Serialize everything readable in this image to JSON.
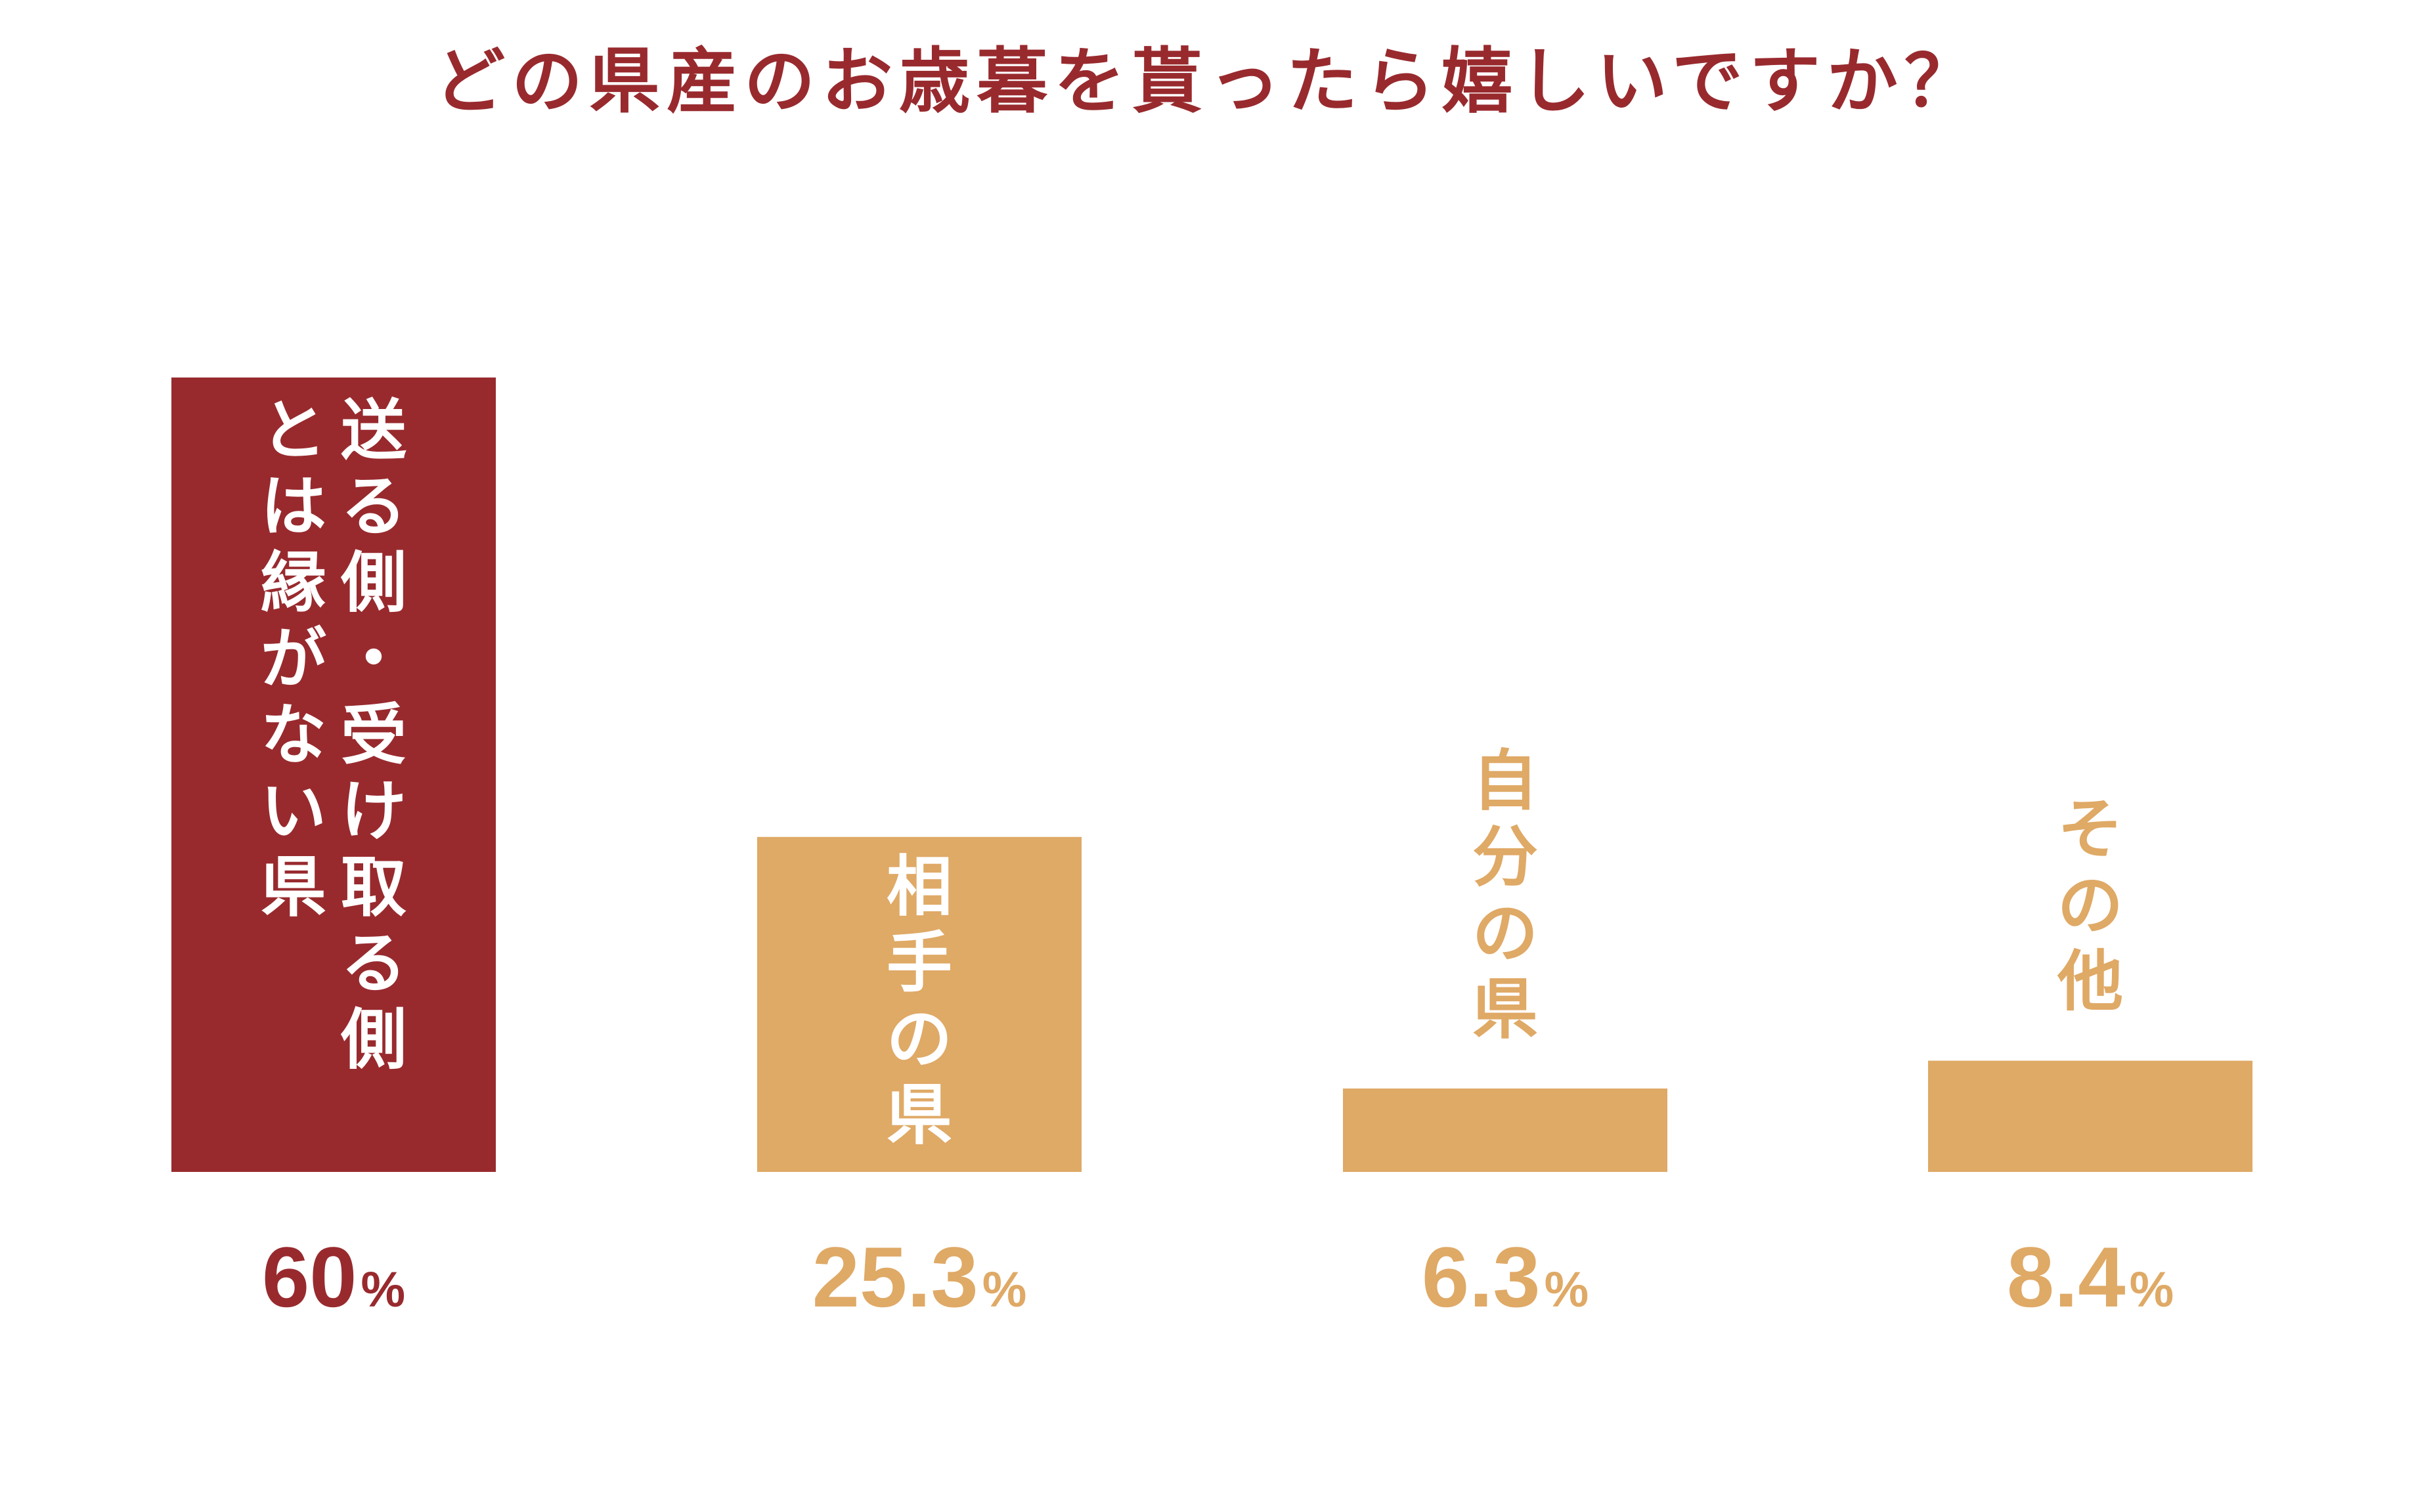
{
  "chart_data": {
    "type": "bar",
    "title": "どの県産のお歳暮を貰ったら嬉しいですか？",
    "categories": [
      "送る側・受け取る側とは縁がない県",
      "相手の県",
      "自分の県",
      "その他"
    ],
    "category_lines": [
      [
        "送る側・受け取る側",
        "とは縁がない県"
      ],
      [
        "相手の県"
      ],
      [
        "自分の県"
      ],
      [
        "その他"
      ]
    ],
    "values": [
      60,
      25.3,
      6.3,
      8.4
    ],
    "value_labels": [
      "60",
      "25.3",
      "6.3",
      "8.4"
    ],
    "unit": "%",
    "ylim": [
      0,
      60
    ],
    "grid": false,
    "legend": "none",
    "bar_colors": [
      "#982a2e",
      "#dfa966",
      "#dfa966",
      "#dfa966"
    ],
    "label_positions": [
      "inside",
      "inside",
      "above",
      "above"
    ]
  },
  "colors": {
    "title": "#982a2e",
    "highlight": "#982a2e",
    "accent": "#dfa966",
    "label_inside": "#ffffff"
  }
}
